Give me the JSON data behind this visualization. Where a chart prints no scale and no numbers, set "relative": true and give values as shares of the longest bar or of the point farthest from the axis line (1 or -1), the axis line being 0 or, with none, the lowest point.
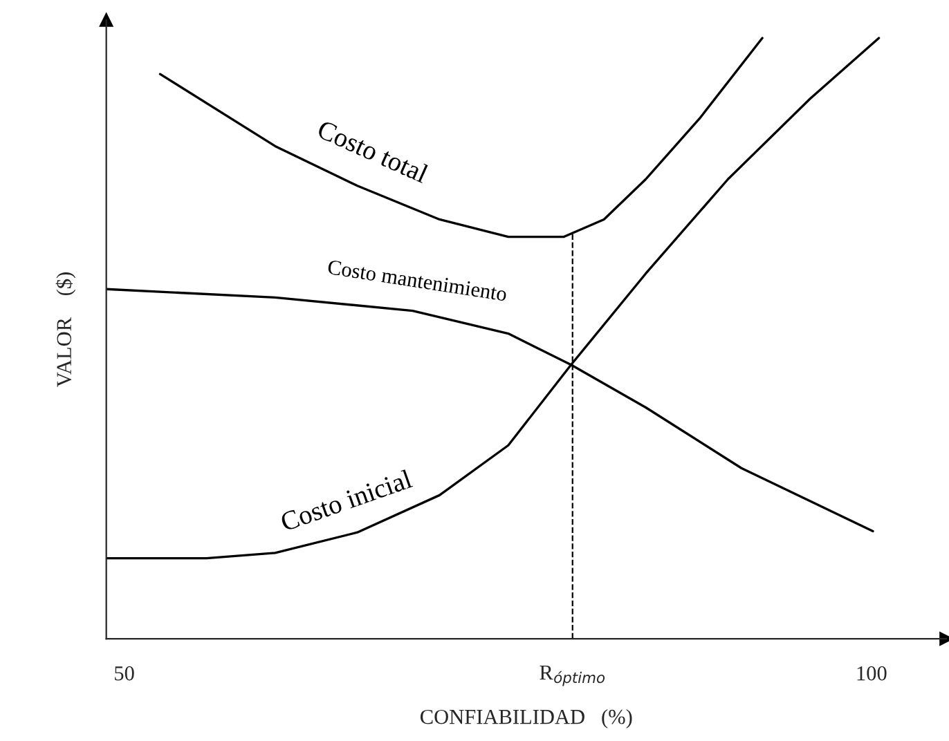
{
  "chart_data": {
    "type": "line",
    "relative": true,
    "xlabel": "CONFIABILIDAD   (%)",
    "ylabel": "VALOR    ($)",
    "xlim": [
      48.8,
      105
    ],
    "xticks": [
      50,
      {
        "value": 80,
        "label": "R$_{óptimo}$"
      },
      100
    ],
    "grid": false,
    "legend": false,
    "marker": "none",
    "line_style": "solid",
    "series": [
      {
        "name": "Costo total",
        "color": "#000000",
        "x": [
          52.4,
          60.1,
          65.6,
          71.1,
          75.7,
          79.4,
          82.1,
          84.9,
          88.5,
          92.7
        ],
        "values": [
          0.94,
          0.82,
          0.754,
          0.698,
          0.669,
          0.669,
          0.698,
          0.765,
          0.866,
          1.0
        ]
      },
      {
        "name": "Costo mantenimiento",
        "color": "#000000",
        "x": [
          48.8,
          60.1,
          69.3,
          75.7,
          79.9,
          84.9,
          91.3,
          100.1
        ],
        "values": [
          0.582,
          0.568,
          0.546,
          0.508,
          0.456,
          0.385,
          0.284,
          0.179
        ]
      },
      {
        "name": "Costo inicial",
        "color": "#000000",
        "x": [
          48.8,
          55.5,
          60.1,
          65.6,
          71.1,
          75.7,
          79.9,
          84.9,
          90.4,
          95.9,
          100.5
        ],
        "values": [
          0.134,
          0.134,
          0.143,
          0.177,
          0.239,
          0.322,
          0.456,
          0.608,
          0.765,
          0.899,
          1.0
        ]
      }
    ],
    "ref_lines": [
      {
        "axis": "x",
        "value": 80,
        "label": null,
        "line_style": "dashed",
        "color": "#000000"
      }
    ]
  }
}
